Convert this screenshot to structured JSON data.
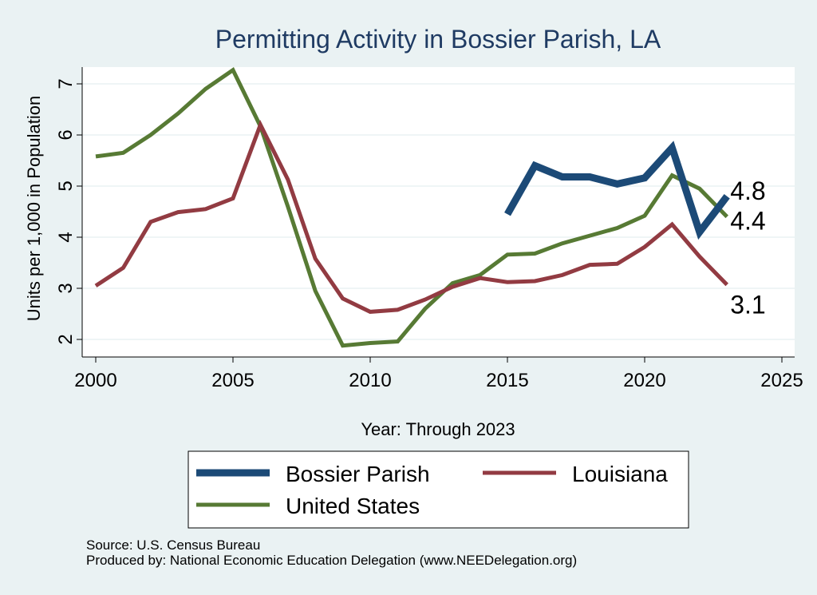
{
  "colors": {
    "background": "#eaf2f3",
    "plot_background": "#ffffff",
    "title": "#1f3b63",
    "bossier": "#1c4a77",
    "louisiana": "#923b42",
    "united_states": "#577a34",
    "gridline": "#eaf2f3"
  },
  "footer": {
    "source": "Source: U.S. Census Bureau",
    "produced_by": "Produced by: National Economic Education Delegation (www.NEEDelegation.org)"
  },
  "chart_data": {
    "type": "line",
    "title": "Permitting Activity in Bossier Parish, LA",
    "xlabel": "Year: Through 2023",
    "ylabel": "Units per 1,000 in Population",
    "xlim": [
      2000,
      2025
    ],
    "ylim": [
      1.8,
      7.4
    ],
    "x_ticks": [
      2000,
      2005,
      2010,
      2015,
      2020,
      2025
    ],
    "y_ticks": [
      2,
      3,
      4,
      5,
      6,
      7
    ],
    "grid": true,
    "legend_position": "bottom",
    "series": [
      {
        "name": "Bossier Parish",
        "key": "bossier",
        "x": [
          2015,
          2016,
          2017,
          2018,
          2019,
          2020,
          2021,
          2022,
          2023
        ],
        "values": [
          4.45,
          5.4,
          5.18,
          5.18,
          5.04,
          5.16,
          5.75,
          4.1,
          4.8
        ],
        "end_label": "4.8"
      },
      {
        "name": "Louisiana",
        "key": "louisiana",
        "x": [
          2000,
          2001,
          2002,
          2003,
          2004,
          2005,
          2006,
          2007,
          2008,
          2009,
          2010,
          2011,
          2012,
          2013,
          2014,
          2015,
          2016,
          2017,
          2018,
          2019,
          2020,
          2021,
          2022,
          2023
        ],
        "values": [
          3.05,
          3.4,
          4.3,
          4.49,
          4.55,
          4.76,
          6.2,
          5.13,
          3.58,
          2.8,
          2.54,
          2.58,
          2.78,
          3.03,
          3.2,
          3.12,
          3.14,
          3.26,
          3.46,
          3.48,
          3.81,
          4.25,
          3.62,
          3.07
        ],
        "end_label": "3.1"
      },
      {
        "name": "United States",
        "key": "united_states",
        "x": [
          2000,
          2001,
          2002,
          2003,
          2004,
          2005,
          2006,
          2007,
          2008,
          2009,
          2010,
          2011,
          2012,
          2013,
          2014,
          2015,
          2016,
          2017,
          2018,
          2019,
          2020,
          2021,
          2022,
          2023
        ],
        "values": [
          5.58,
          5.65,
          6.0,
          6.42,
          6.9,
          7.27,
          6.17,
          4.6,
          2.95,
          1.88,
          1.93,
          1.96,
          2.6,
          3.1,
          3.26,
          3.66,
          3.68,
          3.88,
          4.03,
          4.18,
          4.42,
          5.21,
          4.95,
          4.4
        ],
        "end_label": "4.4"
      }
    ]
  }
}
